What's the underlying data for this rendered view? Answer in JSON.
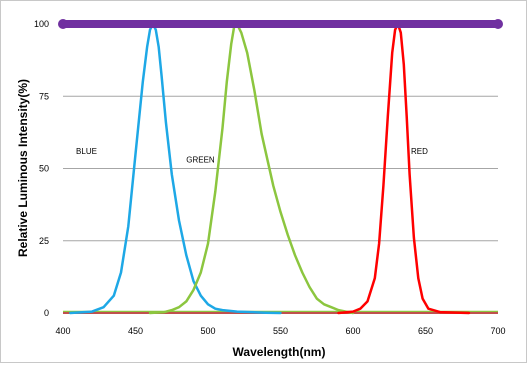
{
  "chart_data": {
    "type": "line",
    "title": "",
    "xlabel": "Wavelength(nm)",
    "ylabel": "Relative Luminous Intensity(%)",
    "xlim": [
      400,
      700
    ],
    "ylim": [
      0,
      100
    ],
    "xticks": [
      "400",
      "450",
      "500",
      "550",
      "600",
      "650",
      "700"
    ],
    "yticks": [
      "0",
      "25",
      "50",
      "75",
      "100"
    ],
    "grid": "horizontal",
    "annotations": [
      {
        "text": "BLUE",
        "x": 409,
        "y": 55
      },
      {
        "text": "GREEN",
        "x": 485,
        "y": 52
      },
      {
        "text": "RED",
        "x": 640,
        "y": 55
      }
    ],
    "series": [
      {
        "key": "blue",
        "color": "#1ea8e6",
        "x": [
          405,
          420,
          428,
          435,
          440,
          445,
          450,
          455,
          458,
          460,
          462,
          464,
          466,
          468,
          471,
          475,
          480,
          485,
          490,
          495,
          500,
          505,
          510,
          520,
          530,
          540,
          550
        ],
        "y": [
          0,
          0.5,
          2,
          6,
          14,
          30,
          55,
          80,
          92,
          98,
          100,
          98,
          92,
          82,
          66,
          48,
          32,
          20,
          11,
          6,
          3,
          1.5,
          1,
          0.5,
          0.3,
          0.1,
          0
        ]
      },
      {
        "key": "green",
        "color": "#8cc63f",
        "x": [
          460,
          470,
          475,
          480,
          485,
          490,
          495,
          500,
          505,
          510,
          513,
          516,
          518,
          520,
          523,
          527,
          532,
          537,
          545,
          550,
          555,
          560,
          565,
          570,
          575,
          580,
          585,
          590,
          595,
          600
        ],
        "y": [
          0,
          0.3,
          1,
          2,
          4,
          8,
          14,
          24,
          42,
          64,
          80,
          93,
          99,
          100,
          97,
          90,
          77,
          62,
          44,
          35,
          27,
          20,
          14,
          9,
          5,
          3,
          2,
          1,
          0.5,
          0
        ]
      },
      {
        "key": "red",
        "color": "#ff0000",
        "x": [
          590,
          600,
          605,
          610,
          615,
          618,
          621,
          624,
          627,
          629,
          631,
          633,
          635,
          637,
          639,
          642,
          645,
          648,
          652,
          660,
          680
        ],
        "y": [
          0,
          0.5,
          1.5,
          4,
          12,
          24,
          44,
          68,
          90,
          98,
          100,
          97,
          86,
          68,
          48,
          26,
          12,
          5,
          1.5,
          0.3,
          0
        ]
      },
      {
        "key": "purple",
        "color": "#7030a0",
        "x": [
          400,
          700
        ],
        "y": [
          100,
          100
        ]
      }
    ]
  }
}
